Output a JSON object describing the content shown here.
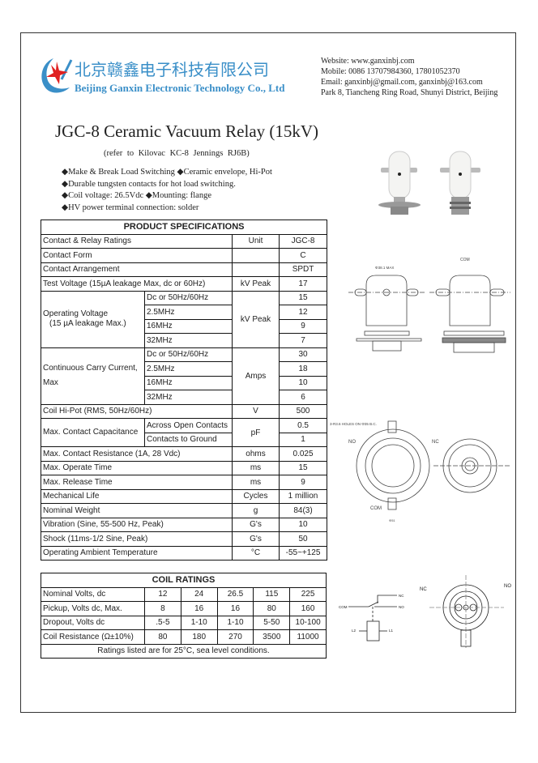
{
  "company": {
    "name_cn": "北京赣鑫电子科技有限公司",
    "name_en": "Beijing Ganxin Electronic Technology Co., Ltd",
    "website": "Website: www.ganxinbj.com",
    "mobile": "Mobile: 0086 13707984360, 17801052370",
    "email": "Email: ganxinbj@gmail.com, ganxinbj@163.com",
    "address": "Park 8, Tiancheng Ring Road, Shunyi District, Beijing",
    "colors": {
      "brand_blue": "#3a8fc8",
      "star_red": "#e02020"
    }
  },
  "product": {
    "title": "JGC-8 Ceramic Vacuum Relay (15kV)",
    "reference": "(refer to  Kilovac  KC-8  Jennings  RJ6B)",
    "features": [
      "◆Make & Break Load Switching ◆Ceramic envelope, Hi-Pot",
      "◆Durable tungsten contacts for hot load switching.",
      "◆Coil voltage: 26.5Vdc  ◆Mounting: flange",
      "◆HV power terminal connection: solder"
    ]
  },
  "specs": {
    "title": "PRODUCT SPECIFICATIONS",
    "header": {
      "label": "Contact & Relay Ratings",
      "unit": "Unit",
      "value": "JGC-8"
    },
    "rows": [
      {
        "label": "Contact Form",
        "unit": "",
        "value": "C"
      },
      {
        "label": "Contact Arrangement",
        "unit": "",
        "value": "SPDT"
      },
      {
        "label": "Test Voltage (15µA leakage Max, dc or 60Hz)",
        "unit": "kV Peak",
        "value": "17"
      }
    ],
    "operating_voltage": {
      "label": "Operating Voltage",
      "label2": "(15 µA leakage Max.)",
      "unit": "kV Peak",
      "items": [
        {
          "freq": "Dc or 50Hz/60Hz",
          "value": "15"
        },
        {
          "freq": "2.5MHz",
          "value": "12"
        },
        {
          "freq": "16MHz",
          "value": "9"
        },
        {
          "freq": "32MHz",
          "value": "7"
        }
      ]
    },
    "carry_current": {
      "label": "Continuous Carry Current,",
      "label2": "Max",
      "unit": "Amps",
      "items": [
        {
          "freq": "Dc or 50Hz/60Hz",
          "value": "30"
        },
        {
          "freq": "2.5MHz",
          "value": "18"
        },
        {
          "freq": "16MHz",
          "value": "10"
        },
        {
          "freq": "32MHz",
          "value": "6"
        }
      ]
    },
    "coil_hipot": {
      "label": "Coil Hi-Pot (RMS, 50Hz/60Hz)",
      "unit": "V",
      "value": "500"
    },
    "capacitance": {
      "label": "Max. Contact Capacitance",
      "unit": "pF",
      "items": [
        {
          "sub": "Across Open Contacts",
          "value": "0.5"
        },
        {
          "sub": "Contacts to Ground",
          "value": "1"
        }
      ]
    },
    "rows2": [
      {
        "label": "Max. Contact Resistance (1A, 28 Vdc)",
        "unit": "ohms",
        "value": "0.025"
      },
      {
        "label": "Max. Operate Time",
        "unit": "ms",
        "value": "15"
      },
      {
        "label": "Max. Release Time",
        "unit": "ms",
        "value": "9"
      },
      {
        "label": "Mechanical Life",
        "unit": "Cycles",
        "value": "1 million"
      },
      {
        "label": "Nominal Weight",
        "unit": "g",
        "value": "84(3)"
      },
      {
        "label": "Vibration (Sine, 55-500 Hz, Peak)",
        "unit": "G's",
        "value": "10"
      },
      {
        "label": "Shock (11ms-1/2 Sine, Peak)",
        "unit": "G's",
        "value": "50"
      },
      {
        "label": "Operating Ambient Temperature",
        "unit": "°C",
        "value": "-55~+125"
      }
    ]
  },
  "coil": {
    "title": "COIL RATINGS",
    "rows": [
      {
        "label": "Nominal Volts, dc",
        "values": [
          "12",
          "24",
          "26.5",
          "115",
          "225"
        ]
      },
      {
        "label": "Pickup, Volts dc, Max.",
        "values": [
          "8",
          "16",
          "16",
          "80",
          "160"
        ]
      },
      {
        "label": "Dropout, Volts dc",
        "values": [
          ".5-5",
          "1-10",
          "1-10",
          "5-50",
          "10-100"
        ]
      },
      {
        "label": "Coil Resistance (Ω±10%)",
        "values": [
          "80",
          "180",
          "270",
          "3500",
          "11000"
        ]
      }
    ],
    "note": "Ratings listed are for 25°C, sea level conditions."
  },
  "drawings": {
    "side_com": "COM",
    "dim_dia": "Φ38.1 MAX",
    "holes_note": "3-R3.6 HOLES ON Φ35 B.C.",
    "no": "NO",
    "nc": "NC",
    "com": "COM",
    "dia_bottom": "Φ51",
    "schematic": {
      "com": "COM",
      "nc": "NC",
      "no": "NO",
      "l1": "L1",
      "l2": "L2"
    },
    "top": {
      "nc": "NC",
      "no": "NO"
    }
  }
}
